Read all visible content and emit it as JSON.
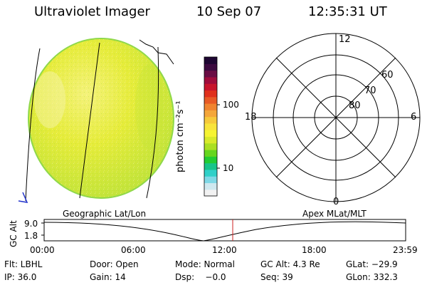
{
  "header": {
    "title": "Ultraviolet Imager",
    "date": "10 Sep 07",
    "time": "12:35:31 UT"
  },
  "colorbar": {
    "unit_label": "photon cm⁻²s⁻¹",
    "tick_labels": [
      "100",
      "10"
    ],
    "colors": [
      "#f2f2f2",
      "#cfe8ef",
      "#7fd8e6",
      "#2fd0c8",
      "#18c48a",
      "#22cc33",
      "#66d61e",
      "#aadf22",
      "#d8ea2a",
      "#f6f432",
      "#f8e43a",
      "#f6c93a",
      "#f4a63a",
      "#f0842f",
      "#e85a25",
      "#e0301c",
      "#c8142c",
      "#a00c3c",
      "#6a0c44",
      "#3c0a40",
      "#1e0632"
    ]
  },
  "polar_plot": {
    "lat_labels": [
      "60",
      "70",
      "80"
    ],
    "mlt_labels": {
      "top": "12",
      "left": "18",
      "right": "6",
      "bottom": "0"
    }
  },
  "altitude_plot": {
    "y_label": "GC Alt",
    "y_ticks": [
      "9.0",
      "1.8"
    ],
    "left_caption": "Geographic Lat/Lon",
    "right_caption": "Apex MLat/MLT",
    "x_ticks": [
      "00:00",
      "06:00",
      "12:00",
      "18:00",
      "23:59"
    ]
  },
  "status": {
    "row1": {
      "filter": "Flt: LBHL",
      "door": "Door: Open",
      "mode": "Mode: Normal",
      "gc_alt": "GC Alt: 4.3 Re",
      "glat": "GLat: −29.9"
    },
    "row2": {
      "ip": "IP: 36.0",
      "gain": "Gain: 14",
      "dsp": "Dsp:    −0.0",
      "seq": "Seq: 39",
      "glon": "GLon: 332.3"
    }
  }
}
